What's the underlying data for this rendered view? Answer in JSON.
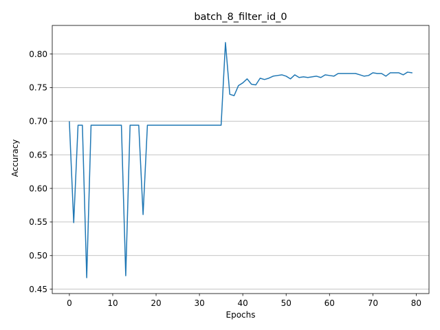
{
  "chart_data": {
    "type": "line",
    "title": "batch_8_filter_id_0",
    "xlabel": "Epochs",
    "ylabel": "Accuracy",
    "xlim": [
      -3.95,
      82.95
    ],
    "ylim": [
      0.4435,
      0.8425
    ],
    "xticks": [
      0,
      10,
      20,
      30,
      40,
      50,
      60,
      70,
      80
    ],
    "yticks": [
      0.45,
      0.5,
      0.55,
      0.6,
      0.65,
      0.7,
      0.75,
      0.8
    ],
    "ytick_labels": [
      "0.45",
      "0.50",
      "0.55",
      "0.60",
      "0.65",
      "0.70",
      "0.75",
      "0.80"
    ],
    "grid": "y-major",
    "series": [
      {
        "name": "accuracy",
        "color": "#1f77b4",
        "x": [
          0,
          1,
          2,
          3,
          4,
          5,
          6,
          7,
          8,
          9,
          10,
          11,
          12,
          13,
          14,
          15,
          16,
          17,
          18,
          19,
          20,
          21,
          22,
          23,
          24,
          25,
          26,
          27,
          28,
          29,
          30,
          31,
          32,
          33,
          34,
          35,
          36,
          37,
          38,
          39,
          40,
          41,
          42,
          43,
          44,
          45,
          46,
          47,
          48,
          49,
          50,
          51,
          52,
          53,
          54,
          55,
          56,
          57,
          58,
          59,
          60,
          61,
          62,
          63,
          64,
          65,
          66,
          67,
          68,
          69,
          70,
          71,
          72,
          73,
          74,
          75,
          76,
          77,
          78,
          79
        ],
        "values": [
          0.699,
          0.549,
          0.694,
          0.694,
          0.467,
          0.694,
          0.694,
          0.694,
          0.694,
          0.694,
          0.694,
          0.694,
          0.694,
          0.47,
          0.694,
          0.694,
          0.694,
          0.561,
          0.694,
          0.694,
          0.694,
          0.694,
          0.694,
          0.694,
          0.694,
          0.694,
          0.694,
          0.694,
          0.694,
          0.694,
          0.694,
          0.694,
          0.694,
          0.694,
          0.694,
          0.694,
          0.817,
          0.74,
          0.738,
          0.753,
          0.757,
          0.763,
          0.755,
          0.754,
          0.764,
          0.762,
          0.764,
          0.767,
          0.768,
          0.769,
          0.767,
          0.763,
          0.769,
          0.765,
          0.766,
          0.765,
          0.766,
          0.767,
          0.765,
          0.769,
          0.768,
          0.767,
          0.771,
          0.771,
          0.771,
          0.771,
          0.771,
          0.769,
          0.767,
          0.768,
          0.772,
          0.771,
          0.771,
          0.767,
          0.772,
          0.772,
          0.772,
          0.769,
          0.773,
          0.772
        ]
      }
    ]
  }
}
